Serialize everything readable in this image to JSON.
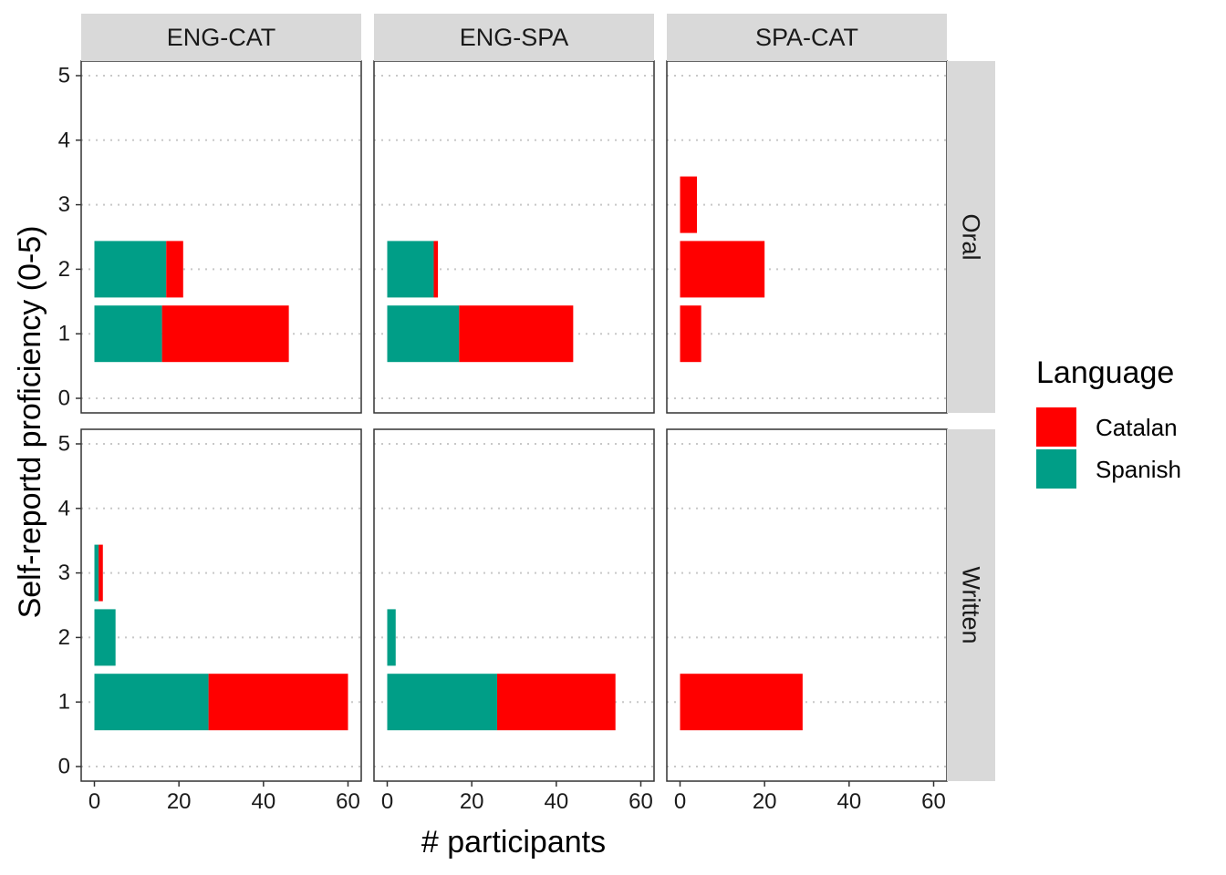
{
  "chart_data": {
    "type": "bar",
    "orientation": "horizontal",
    "stacked": true,
    "facet_columns": [
      "ENG-CAT",
      "ENG-SPA",
      "SPA-CAT"
    ],
    "facet_rows": [
      "Oral",
      "Written"
    ],
    "xlabel": "# participants",
    "ylabel": "Self-reportd proficiency (0-5)",
    "xlim": [
      0,
      60
    ],
    "ylim": [
      0,
      5
    ],
    "x_ticks": [
      "0",
      "20",
      "40",
      "60"
    ],
    "y_ticks": [
      "0",
      "1",
      "2",
      "3",
      "4",
      "5"
    ],
    "grid": "dotted horizontal",
    "legend": {
      "title": "Language",
      "position": "right",
      "entries": [
        {
          "name": "Catalan",
          "color": "#ff0000"
        },
        {
          "name": "Spanish",
          "color": "#009e87"
        }
      ]
    },
    "series_colors": {
      "Spanish": "#009e87",
      "Catalan": "#ff0000"
    },
    "panels": [
      {
        "col": "ENG-CAT",
        "row": "Oral",
        "bars": [
          {
            "level": 1,
            "Spanish": 16,
            "Catalan": 30
          },
          {
            "level": 2,
            "Spanish": 17,
            "Catalan": 4
          }
        ]
      },
      {
        "col": "ENG-SPA",
        "row": "Oral",
        "bars": [
          {
            "level": 1,
            "Spanish": 17,
            "Catalan": 27
          },
          {
            "level": 2,
            "Spanish": 11,
            "Catalan": 1
          }
        ]
      },
      {
        "col": "SPA-CAT",
        "row": "Oral",
        "bars": [
          {
            "level": 1,
            "Spanish": 0,
            "Catalan": 5
          },
          {
            "level": 2,
            "Spanish": 0,
            "Catalan": 20
          },
          {
            "level": 3,
            "Spanish": 0,
            "Catalan": 4
          }
        ]
      },
      {
        "col": "ENG-CAT",
        "row": "Written",
        "bars": [
          {
            "level": 1,
            "Spanish": 27,
            "Catalan": 33
          },
          {
            "level": 2,
            "Spanish": 5,
            "Catalan": 0
          },
          {
            "level": 3,
            "Spanish": 1,
            "Catalan": 1
          }
        ]
      },
      {
        "col": "ENG-SPA",
        "row": "Written",
        "bars": [
          {
            "level": 1,
            "Spanish": 26,
            "Catalan": 28
          },
          {
            "level": 2,
            "Spanish": 2,
            "Catalan": 0
          }
        ]
      },
      {
        "col": "SPA-CAT",
        "row": "Written",
        "bars": [
          {
            "level": 1,
            "Spanish": 0,
            "Catalan": 29
          }
        ]
      }
    ]
  }
}
